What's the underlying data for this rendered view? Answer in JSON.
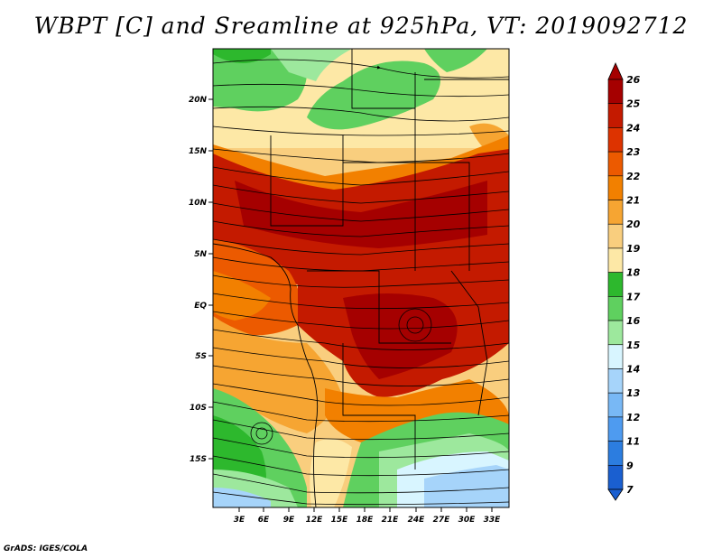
{
  "title": "WBPT [C] and Sreamline at 925hPa, VT: 2019092712",
  "footer": "GrADS: IGES/COLA",
  "map": {
    "lat_labels": [
      "20N",
      "15N",
      "10N",
      "5N",
      "EQ",
      "5S",
      "10S",
      "15S"
    ],
    "lon_labels": [
      "3E",
      "6E",
      "9E",
      "12E",
      "15E",
      "18E",
      "21E",
      "24E",
      "27E",
      "30E",
      "33E"
    ]
  },
  "colorbar": {
    "labels": [
      "26",
      "25",
      "24",
      "23",
      "22",
      "21",
      "20",
      "19",
      "18",
      "17",
      "16",
      "15",
      "14",
      "13",
      "12",
      "11",
      "9",
      "7"
    ],
    "colors": [
      "#a50000",
      "#c41a00",
      "#dd3300",
      "#ec5a00",
      "#f28000",
      "#f6a532",
      "#f9ce7e",
      "#fde8a6",
      "#2db82d",
      "#5fd05f",
      "#9de89d",
      "#d8f5ff",
      "#a6d4fa",
      "#78b8f5",
      "#4e9bf0",
      "#2c7de0",
      "#1a5fd0"
    ]
  }
}
